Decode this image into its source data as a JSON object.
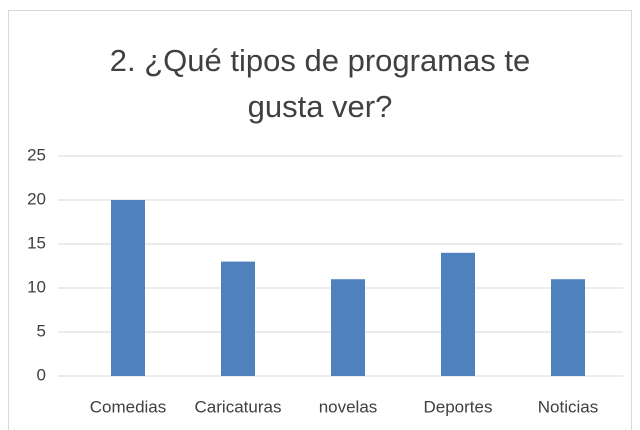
{
  "chart_data": {
    "type": "bar",
    "title": "2. ¿Qué tipos de programas te gusta ver?",
    "categories": [
      "Comedias",
      "Caricaturas",
      "novelas",
      "Deportes",
      "Noticias"
    ],
    "values": [
      20,
      13,
      11,
      14,
      11
    ],
    "color": "#4f81bd",
    "ylim": [
      0,
      25
    ],
    "yticks": [
      0,
      5,
      10,
      15,
      20,
      25
    ],
    "grid": true
  }
}
